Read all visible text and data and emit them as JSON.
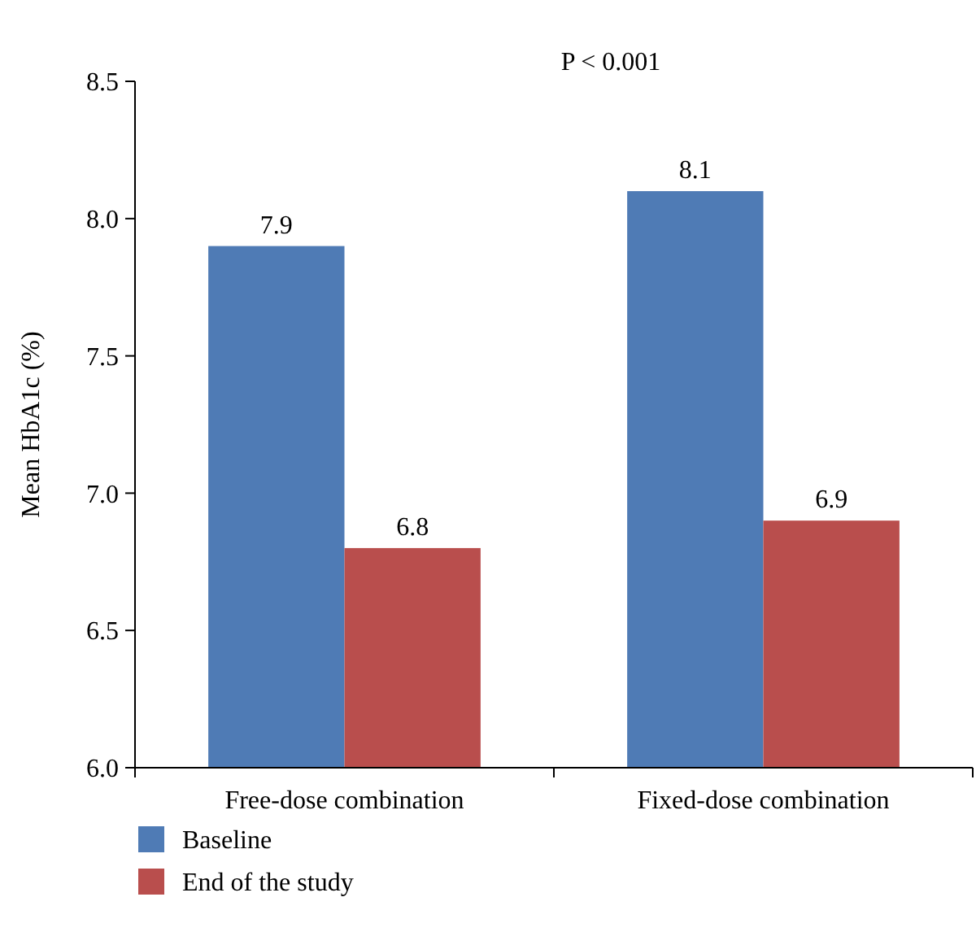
{
  "chart_data": {
    "type": "bar",
    "ylabel": "Mean HbA1c (%)",
    "annotations": [
      "P < 0.001"
    ],
    "categories": [
      "Free-dose combination",
      "Fixed-dose combination"
    ],
    "series": [
      {
        "name": "Baseline",
        "color": "#4f7bb5",
        "values": [
          7.9,
          8.1
        ]
      },
      {
        "name": "End of the study",
        "color": "#b94e4d",
        "values": [
          6.8,
          6.9
        ]
      }
    ],
    "ylim": [
      6.0,
      8.5
    ],
    "yticks": [
      {
        "value": 6.0,
        "label": "6.0"
      },
      {
        "value": 6.5,
        "label": "6.5"
      },
      {
        "value": 7.0,
        "label": "7.0"
      },
      {
        "value": 7.5,
        "label": "7.5"
      },
      {
        "value": 8.0,
        "label": "8.0"
      },
      {
        "value": 8.5,
        "label": "8.5"
      }
    ],
    "data_labels": true,
    "legend": "bottom",
    "grid": false
  }
}
